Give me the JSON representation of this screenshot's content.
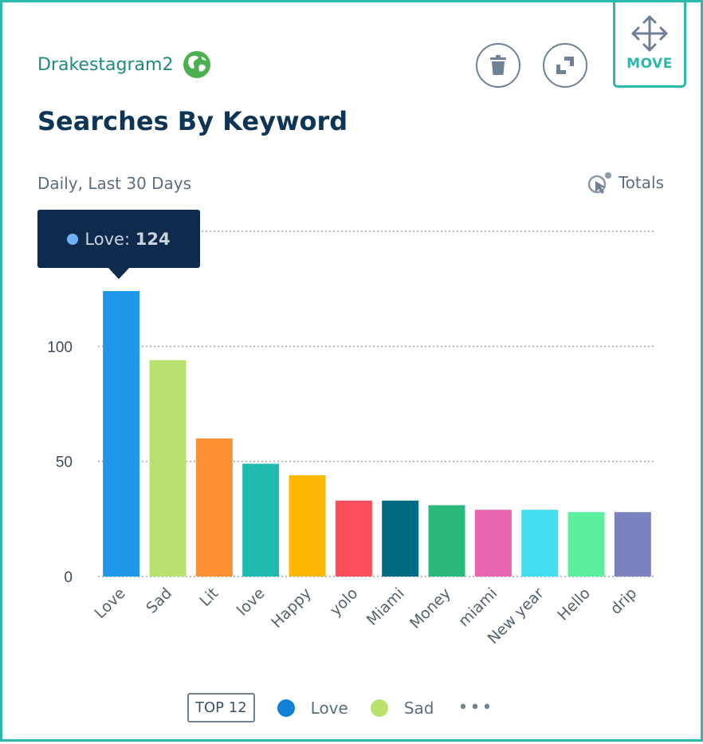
{
  "widget": {
    "account_name": "Drakestagram2",
    "move_label": "MOVE",
    "delete_icon": "trash-icon",
    "expand_icon": "expand-icon",
    "globe_icon": "globe-icon"
  },
  "header": {
    "title": "Searches By Keyword",
    "subtitle": "Daily, Last 30 Days",
    "totals_label": "Totals"
  },
  "tooltip": {
    "label": "Love:",
    "value": "124",
    "dot_color": "#6fb1f2"
  },
  "chart_data": {
    "type": "bar",
    "title": "Searches By Keyword",
    "xlabel": "",
    "ylabel": "",
    "ylim": [
      0,
      150
    ],
    "yticks": [
      0,
      50,
      100
    ],
    "grid": true,
    "categories": [
      "Love",
      "Sad",
      "Lit",
      "love",
      "Happy",
      "yolo",
      "Miami",
      "Money",
      "miami",
      "New year",
      "Hello",
      "drip"
    ],
    "values": [
      124,
      94,
      60,
      49,
      44,
      33,
      33,
      31,
      29,
      29,
      28,
      28
    ],
    "colors": [
      "#1e97e8",
      "#b9e271",
      "#fd8f35",
      "#20bab1",
      "#fdb802",
      "#fd4f5b",
      "#006c84",
      "#2ab97a",
      "#e966b0",
      "#43dcf0",
      "#5cef9f",
      "#7c81bf"
    ]
  },
  "legend": {
    "top_label": "TOP 12",
    "items": [
      {
        "label": "Love",
        "color": "#1180d9"
      },
      {
        "label": "Sad",
        "color": "#b9e271"
      }
    ],
    "more_label": "•••"
  }
}
